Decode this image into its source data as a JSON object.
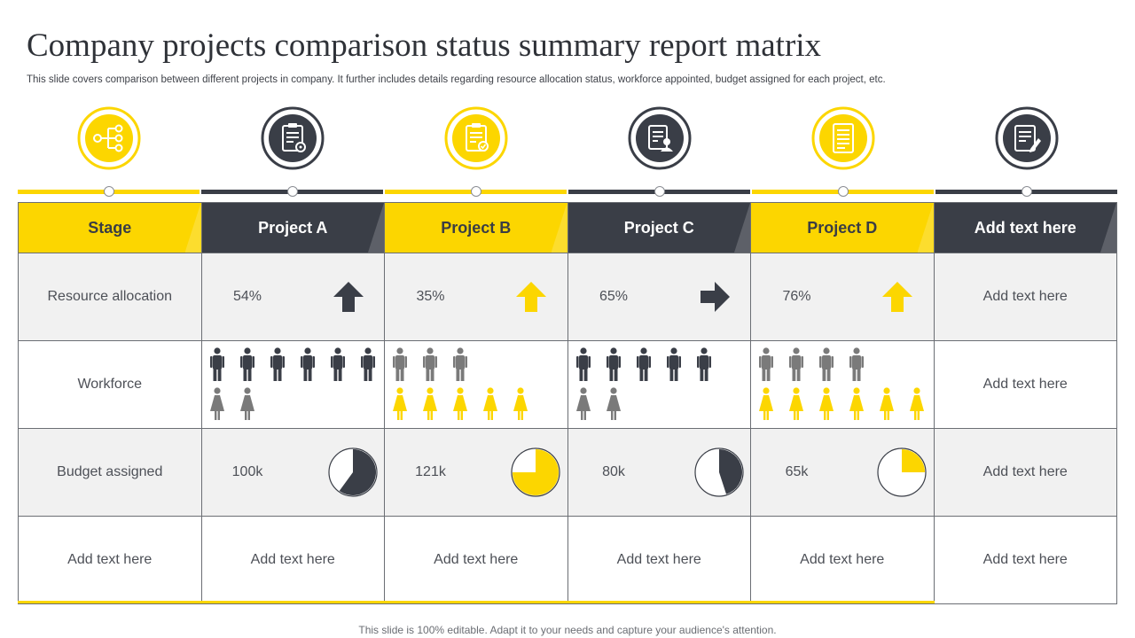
{
  "title": "Company projects comparison status summary report matrix",
  "subtitle": "This slide covers comparison between different projects in company. It further includes details regarding resource allocation status, workforce appointed, budget assigned for each project, etc.",
  "colors": {
    "yellow": "#fcd600",
    "dark": "#3a3e47",
    "gray": "#7a7a7a",
    "cell_gray": "#f1f1f1"
  },
  "icons": [
    "network-diagram-icon",
    "clipboard-gear-icon",
    "checklist-icon",
    "id-card-person-icon",
    "document-list-icon",
    "document-pen-icon"
  ],
  "headers": [
    "Stage",
    "Project A",
    "Project B",
    "Project C",
    "Project D",
    "Add text here"
  ],
  "rows": {
    "resource_label": "Resource allocation",
    "workforce_label": "Workforce",
    "budget_label": "Budget assigned",
    "extra_label": "Add text here"
  },
  "projects": [
    {
      "resource": "54%",
      "arrow": "up",
      "arrow_color": "dark",
      "budget": "100k",
      "budget_fraction": 0.6,
      "pie_color": "dark",
      "workforce": {
        "male": 6,
        "male_color": "dark",
        "female": 2,
        "female_color": "gray"
      },
      "extra": "Add text here"
    },
    {
      "resource": "35%",
      "arrow": "up",
      "arrow_color": "yellow",
      "budget": "121k",
      "budget_fraction": 0.75,
      "pie_color": "yellow",
      "workforce": {
        "male": 3,
        "male_color": "gray",
        "female": 5,
        "female_color": "yellow"
      },
      "extra": "Add text here"
    },
    {
      "resource": "65%",
      "arrow": "right",
      "arrow_color": "dark",
      "budget": "80k",
      "budget_fraction": 0.45,
      "pie_color": "dark",
      "workforce": {
        "male": 5,
        "male_color": "dark",
        "female": 2,
        "female_color": "gray"
      },
      "extra": "Add text here"
    },
    {
      "resource": "76%",
      "arrow": "up",
      "arrow_color": "yellow",
      "budget": "65k",
      "budget_fraction": 0.25,
      "pie_color": "yellow",
      "workforce": {
        "male": 4,
        "male_color": "gray",
        "female": 6,
        "female_color": "yellow"
      },
      "extra": "Add text here"
    }
  ],
  "last_column": {
    "resource": "Add text here",
    "workforce": "Add text here",
    "budget": "Add text here",
    "extra": "Add text here"
  },
  "footer": "This slide is 100% editable. Adapt it to your needs and capture your audience's attention."
}
